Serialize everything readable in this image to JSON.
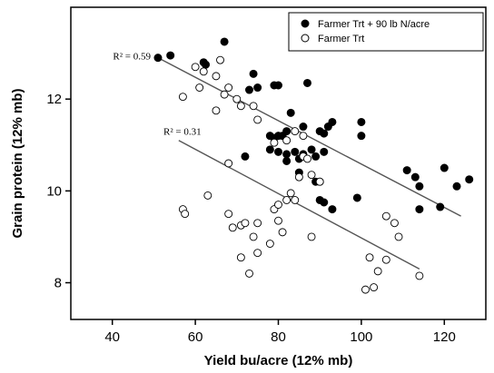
{
  "chart_data": {
    "type": "scatter",
    "xlabel": "Yield bu/acre (12% mb)",
    "ylabel": "Grain protein (12% mb)",
    "xlim": [
      30,
      130
    ],
    "ylim": [
      7.2,
      14.0
    ],
    "xticks": [
      40,
      60,
      80,
      100,
      120
    ],
    "yticks": [
      8,
      10,
      12
    ],
    "grid": false,
    "legend_position": "top-right",
    "series": [
      {
        "name": "Farmer Trt + 90 lb N/acre",
        "marker": "filled-circle",
        "color": "#000000",
        "r2_label": "R² = 0.59",
        "fit_line": [
          [
            51,
            12.9
          ],
          [
            124,
            9.45
          ]
        ],
        "points": [
          [
            51,
            12.9
          ],
          [
            54,
            12.95
          ],
          [
            62,
            12.8
          ],
          [
            62.5,
            12.75
          ],
          [
            67,
            13.25
          ],
          [
            73,
            12.2
          ],
          [
            74,
            12.55
          ],
          [
            75,
            12.25
          ],
          [
            79,
            12.3
          ],
          [
            80,
            12.3
          ],
          [
            78,
            11.2
          ],
          [
            79,
            11.15
          ],
          [
            80,
            11.2
          ],
          [
            81,
            11.2
          ],
          [
            82,
            11.3
          ],
          [
            83,
            11.7
          ],
          [
            86,
            11.4
          ],
          [
            87,
            12.35
          ],
          [
            90,
            11.3
          ],
          [
            91,
            11.25
          ],
          [
            92,
            11.4
          ],
          [
            93,
            11.5
          ],
          [
            100,
            11.5
          ],
          [
            100,
            11.2
          ],
          [
            72,
            10.75
          ],
          [
            78,
            10.9
          ],
          [
            80,
            10.85
          ],
          [
            82,
            10.65
          ],
          [
            82,
            10.8
          ],
          [
            84,
            10.85
          ],
          [
            85,
            10.7
          ],
          [
            86,
            10.8
          ],
          [
            88,
            10.9
          ],
          [
            89,
            10.75
          ],
          [
            91,
            10.85
          ],
          [
            85,
            10.4
          ],
          [
            89,
            10.2
          ],
          [
            90,
            9.8
          ],
          [
            91,
            9.75
          ],
          [
            93,
            9.6
          ],
          [
            99,
            9.85
          ],
          [
            111,
            10.45
          ],
          [
            113,
            10.3
          ],
          [
            114,
            10.1
          ],
          [
            114,
            9.6
          ],
          [
            119,
            9.65
          ],
          [
            120,
            10.5
          ],
          [
            123,
            10.1
          ],
          [
            126,
            10.25
          ]
        ]
      },
      {
        "name": "Farmer Trt",
        "marker": "open-circle",
        "color": "#000000",
        "r2_label": "R² = 0.31",
        "fit_line": [
          [
            56,
            11.1
          ],
          [
            114,
            8.3
          ]
        ],
        "points": [
          [
            60,
            12.7
          ],
          [
            62,
            12.6
          ],
          [
            65,
            12.5
          ],
          [
            66,
            12.85
          ],
          [
            68,
            12.25
          ],
          [
            70,
            12.0
          ],
          [
            61,
            12.25
          ],
          [
            57,
            12.05
          ],
          [
            67,
            12.1
          ],
          [
            71,
            11.85
          ],
          [
            74,
            11.85
          ],
          [
            75,
            11.55
          ],
          [
            65,
            11.75
          ],
          [
            79,
            11.05
          ],
          [
            82,
            11.1
          ],
          [
            84,
            11.3
          ],
          [
            86,
            11.2
          ],
          [
            86,
            10.75
          ],
          [
            87,
            10.7
          ],
          [
            85,
            10.3
          ],
          [
            88,
            10.35
          ],
          [
            90,
            10.2
          ],
          [
            68,
            10.6
          ],
          [
            57,
            9.6
          ],
          [
            57.5,
            9.5
          ],
          [
            63,
            9.9
          ],
          [
            68,
            9.5
          ],
          [
            69,
            9.2
          ],
          [
            71,
            9.25
          ],
          [
            72,
            9.3
          ],
          [
            74,
            9.0
          ],
          [
            75,
            9.3
          ],
          [
            78,
            8.85
          ],
          [
            79,
            9.6
          ],
          [
            80,
            9.7
          ],
          [
            80,
            9.35
          ],
          [
            81,
            9.1
          ],
          [
            82,
            9.8
          ],
          [
            84,
            9.8
          ],
          [
            88,
            9.0
          ],
          [
            71,
            8.55
          ],
          [
            75,
            8.65
          ],
          [
            73,
            8.2
          ],
          [
            102,
            8.55
          ],
          [
            104,
            8.25
          ],
          [
            106,
            8.5
          ],
          [
            108,
            9.3
          ],
          [
            109,
            9.0
          ],
          [
            114,
            8.15
          ],
          [
            101,
            7.85
          ],
          [
            103,
            7.9
          ],
          [
            106,
            9.45
          ],
          [
            90,
            10.2
          ],
          [
            83,
            9.95
          ]
        ]
      }
    ]
  }
}
